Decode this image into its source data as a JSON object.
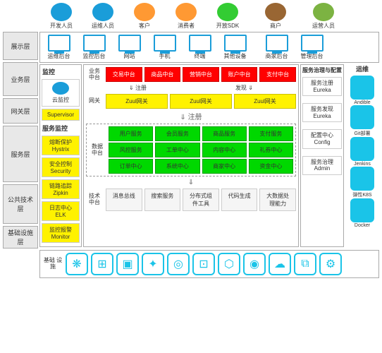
{
  "roles": [
    "开发人员",
    "运维人员",
    "客户",
    "消费者",
    "开放SDK",
    "商户",
    "运营人员"
  ],
  "role_colors": [
    "#1a9dd9",
    "#1a9dd9",
    "#ff9933",
    "#ff9933",
    "#33cc33",
    "#996633",
    "#7cb342"
  ],
  "layers": [
    "展示层",
    "业务层",
    "网关层",
    "服务层",
    "公共技术层",
    "基础设施层"
  ],
  "terminals": [
    "运维后台",
    "监控后台",
    "网站",
    "手机",
    "终端",
    "其他设备",
    "商家后台",
    "管理后台"
  ],
  "monitor": {
    "title": "监控",
    "cloud": "云监控",
    "sup": "Supervisor",
    "sub": "服务监控",
    "items": [
      "熔断保护\nHystrix",
      "安全控制\nSecurity",
      "链路追踪\nZipkin",
      "日志中心\nELK",
      "监控报警\nMonitor"
    ]
  },
  "biz": {
    "label": "业务\n中台",
    "items": [
      "交易中台",
      "商品中台",
      "营销中台",
      "账户中台",
      "支付中台"
    ]
  },
  "reg": "注册",
  "disc": "发现",
  "gw": {
    "label": "网关",
    "items": [
      "Zuul网关",
      "Zuul网关",
      "Zuul网关"
    ]
  },
  "data": {
    "label": "数据\n中台",
    "rows": [
      [
        "用户服务",
        "会员服务",
        "商品服务",
        "支付服务"
      ],
      [
        "风控服务",
        "工单中心",
        "内容中心",
        "礼券中心"
      ],
      [
        "订单中心",
        "系统中心",
        "商家中心",
        "资金中心"
      ]
    ]
  },
  "tech": {
    "label": "技术\n中台",
    "items": [
      "消息总线",
      "搜索服务",
      "分布式组件工具",
      "代码生成",
      "大数据处理能力"
    ]
  },
  "gov": {
    "title": "服务治理与配置",
    "items": [
      "服务注册\nEureka",
      "服务发现\nEureka",
      "配置中心\nConfig",
      "服务治理\nAdmin"
    ]
  },
  "ops": {
    "title": "运维",
    "items": [
      "Andible",
      "Git部署",
      "Jenkins",
      "弹性K8S",
      "Docker"
    ]
  },
  "infra": {
    "label": "基础\n设施",
    "count": 11
  },
  "colors": {
    "red": "#ff0000",
    "green": "#00d800",
    "yellow": "#fff200",
    "cyan": "#1ac4e8",
    "blue": "#1a9dd9",
    "border": "#aaaaaa",
    "bg": "#ffffff"
  }
}
